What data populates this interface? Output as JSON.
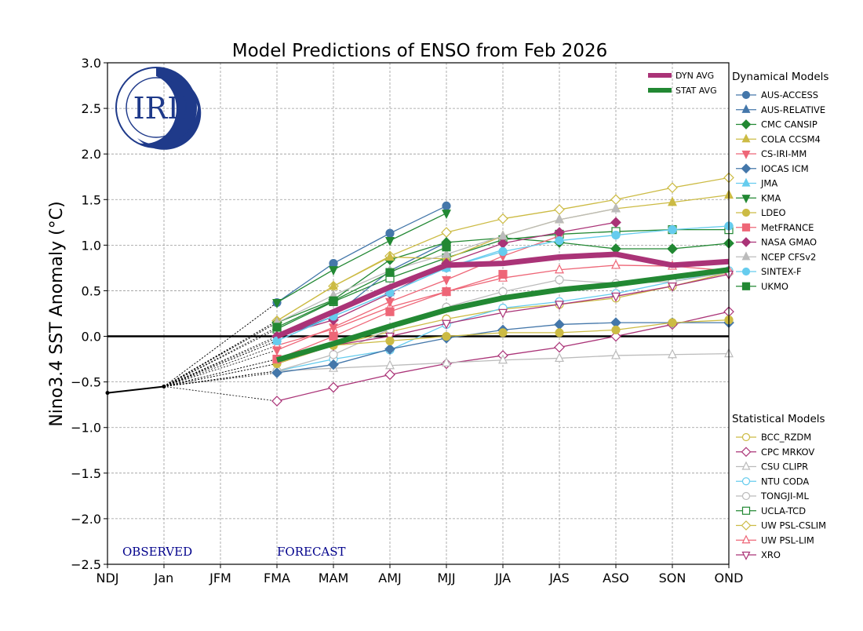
{
  "chart_data": {
    "type": "line",
    "title": "Model Predictions of ENSO from Feb 2026",
    "ylabel": "Nino3.4 SST Anomaly (°C)",
    "xlabel": "",
    "ylim": [
      -2.5,
      3.0
    ],
    "yticks": [
      "3.0",
      "2.5",
      "2.0",
      "1.5",
      "1.0",
      "0.5",
      "0.0",
      "−0.5",
      "−1.0",
      "−1.5",
      "−2.0",
      "−2.5"
    ],
    "ytick_values": [
      3.0,
      2.5,
      2.0,
      1.5,
      1.0,
      0.5,
      0.0,
      -0.5,
      -1.0,
      -1.5,
      -2.0,
      -2.5
    ],
    "categories": [
      "NDJ",
      "Jan",
      "JFM",
      "FMA",
      "MAM",
      "AMJ",
      "MJJ",
      "JJA",
      "JAS",
      "ASO",
      "SON",
      "OND"
    ],
    "grid": true,
    "observed_label": "OBSERVED",
    "forecast_label": "FORECAST",
    "observed": {
      "x": [
        "NDJ",
        "Jan"
      ],
      "values": [
        -0.62,
        -0.55
      ],
      "color": "#000000"
    },
    "forecast_start": [
      "FMA",
      "MAM",
      "AMJ",
      "MJJ",
      "JJA",
      "JAS",
      "ASO",
      "SON",
      "OND"
    ],
    "averages": [
      {
        "name": "DYN AVG",
        "color": "#aa3377",
        "values": [
          0.0,
          0.27,
          0.54,
          0.78,
          0.8,
          0.87,
          0.9,
          0.78,
          0.82
        ]
      },
      {
        "name": "STAT AVG",
        "color": "#228833",
        "values": [
          -0.26,
          -0.08,
          0.11,
          0.29,
          0.42,
          0.51,
          0.57,
          0.65,
          0.73
        ]
      }
    ],
    "dynamical_title": "Dynamical Models",
    "statistical_title": "Statistical Models",
    "dynamical": [
      {
        "name": "AUS-ACCESS",
        "color": "#4477aa",
        "marker": "circle",
        "values": [
          0.37,
          0.8,
          1.13,
          1.43
        ]
      },
      {
        "name": "AUS-RELATIVE",
        "color": "#4477aa",
        "marker": "triangle-up",
        "values": [
          -0.02,
          0.22,
          0.72,
          1.03
        ]
      },
      {
        "name": "CMC CANSIP",
        "color": "#228833",
        "marker": "diamond",
        "values": [
          0.15,
          0.4,
          0.84,
          1.03,
          1.08,
          1.03,
          0.96,
          0.96,
          1.02
        ]
      },
      {
        "name": "COLA CCSM4",
        "color": "#ccbb44",
        "marker": "triangle-up",
        "values": [
          0.17,
          0.55,
          0.87,
          0.85,
          1.1,
          1.28,
          1.4,
          1.47,
          1.55
        ]
      },
      {
        "name": "CS-IRI-MM",
        "color": "#ee6677",
        "marker": "triangle-down",
        "values": [
          -0.15,
          0.1,
          0.38,
          0.62,
          0.88,
          1.1
        ]
      },
      {
        "name": "IOCAS ICM",
        "color": "#4477aa",
        "marker": "diamond",
        "values": [
          -0.4,
          -0.31,
          -0.14,
          -0.02,
          0.07,
          0.13,
          0.15,
          0.15,
          0.15
        ]
      },
      {
        "name": "JMA",
        "color": "#66ccee",
        "marker": "triangle-up",
        "values": [
          -0.05,
          0.22,
          0.48,
          0.75,
          0.95
        ]
      },
      {
        "name": "KMA",
        "color": "#228833",
        "marker": "triangle-down",
        "values": [
          0.37,
          0.73,
          1.05,
          1.35
        ]
      },
      {
        "name": "LDEO",
        "color": "#ccbb44",
        "marker": "circle",
        "values": [
          -0.3,
          -0.1,
          -0.05,
          0.0,
          0.04,
          0.04,
          0.07,
          0.15,
          0.18
        ]
      },
      {
        "name": "MetFRANCE",
        "color": "#ee6677",
        "marker": "square",
        "values": [
          -0.25,
          0.0,
          0.27,
          0.49,
          0.68
        ]
      },
      {
        "name": "NASA GMAO",
        "color": "#aa3377",
        "marker": "diamond",
        "values": [
          0.0,
          0.18,
          0.47,
          0.8,
          1.02,
          1.14,
          1.25
        ]
      },
      {
        "name": "NCEP CFSv2",
        "color": "#bbbbbb",
        "marker": "triangle-up",
        "values": [
          0.15,
          0.45,
          0.72,
          0.9,
          1.1,
          1.28,
          1.4
        ]
      },
      {
        "name": "SINTEX-F",
        "color": "#66ccee",
        "marker": "circle",
        "values": [
          -0.05,
          0.22,
          0.48,
          0.75,
          0.93,
          1.05,
          1.11,
          1.17,
          1.21
        ]
      },
      {
        "name": "UKMO",
        "color": "#228833",
        "marker": "square",
        "values": [
          0.1,
          0.39,
          0.7,
          0.98
        ]
      }
    ],
    "statistical": [
      {
        "name": "BCC_RZDM",
        "color": "#ccbb44",
        "marker": "circle",
        "values": [
          -0.25,
          -0.1,
          0.05,
          0.19,
          0.3,
          0.35,
          0.42,
          0.55,
          0.7
        ]
      },
      {
        "name": "CPC MRKOV",
        "color": "#aa3377",
        "marker": "diamond",
        "values": [
          -0.71,
          -0.56,
          -0.42,
          -0.3,
          -0.21,
          -0.12,
          0.0,
          0.13,
          0.27
        ]
      },
      {
        "name": "CSU CLIPR",
        "color": "#bbbbbb",
        "marker": "triangle-up",
        "values": [
          -0.38,
          -0.35,
          -0.32,
          -0.29,
          -0.26,
          -0.24,
          -0.21,
          -0.2,
          -0.19
        ]
      },
      {
        "name": "NTU CODA",
        "color": "#66ccee",
        "marker": "circle",
        "values": [
          -0.38,
          -0.25,
          -0.15,
          0.13,
          0.31,
          0.38,
          0.47,
          0.6,
          0.72
        ]
      },
      {
        "name": "TONGJI-ML",
        "color": "#bbbbbb",
        "marker": "circle",
        "values": [
          -0.38,
          -0.2,
          0.08,
          0.32,
          0.49,
          0.62,
          0.58,
          0.6,
          0.7
        ]
      },
      {
        "name": "UCLA-TCD",
        "color": "#228833",
        "marker": "square",
        "values": [
          0.08,
          0.38,
          0.64,
          0.86,
          1.06,
          1.12,
          1.15,
          1.17,
          1.17
        ]
      },
      {
        "name": "UW PSL-CSLIM",
        "color": "#ccbb44",
        "marker": "diamond",
        "values": [
          0.17,
          0.55,
          0.88,
          1.14,
          1.29,
          1.39,
          1.5,
          1.63,
          1.74
        ]
      },
      {
        "name": "UW PSL-LIM",
        "color": "#ee6677",
        "marker": "triangle-up",
        "values": [
          -0.1,
          0.08,
          0.32,
          0.49,
          0.64,
          0.73,
          0.78,
          0.77,
          0.72
        ]
      },
      {
        "name": "XRO",
        "color": "#aa3377",
        "marker": "triangle-down",
        "values": [
          -0.3,
          -0.1,
          0.0,
          0.14,
          0.26,
          0.35,
          0.44,
          0.55,
          0.68
        ]
      }
    ]
  },
  "logo": {
    "text": "IRI",
    "color": "#1f3a8a"
  }
}
